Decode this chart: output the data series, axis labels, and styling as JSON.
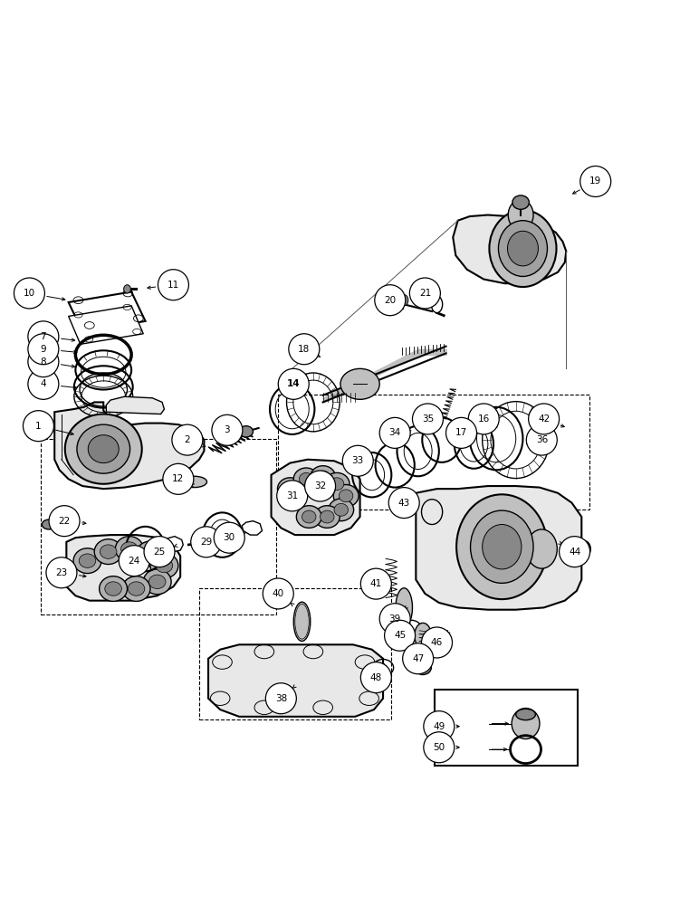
{
  "fig_width": 7.72,
  "fig_height": 10.0,
  "bg": "#ffffff",
  "label_positions": {
    "1": [
      0.055,
      0.538,
      0.11,
      0.525
    ],
    "2": [
      0.268,
      0.518,
      0.295,
      0.508
    ],
    "3": [
      0.325,
      0.532,
      0.348,
      0.522
    ],
    "4": [
      0.062,
      0.598,
      0.115,
      0.592
    ],
    "7": [
      0.062,
      0.666,
      0.112,
      0.66
    ],
    "8": [
      0.062,
      0.63,
      0.112,
      0.622
    ],
    "9": [
      0.062,
      0.648,
      0.115,
      0.643
    ],
    "10": [
      0.042,
      0.728,
      0.098,
      0.718
    ],
    "11": [
      0.248,
      0.74,
      0.206,
      0.735
    ],
    "12": [
      0.255,
      0.462,
      0.272,
      0.455
    ],
    "14": [
      0.42,
      0.598,
      0.438,
      0.582
    ],
    "16": [
      0.692,
      0.548,
      0.712,
      0.535
    ],
    "17": [
      0.66,
      0.528,
      0.672,
      0.518
    ],
    "18": [
      0.435,
      0.648,
      0.462,
      0.635
    ],
    "19": [
      0.852,
      0.888,
      0.815,
      0.868
    ],
    "20": [
      0.558,
      0.718,
      0.578,
      0.705
    ],
    "21": [
      0.608,
      0.728,
      0.618,
      0.715
    ],
    "22": [
      0.092,
      0.402,
      0.128,
      0.398
    ],
    "23": [
      0.088,
      0.328,
      0.128,
      0.322
    ],
    "24": [
      0.192,
      0.345,
      0.215,
      0.352
    ],
    "25": [
      0.228,
      0.358,
      0.248,
      0.365
    ],
    "29": [
      0.295,
      0.372,
      0.318,
      0.378
    ],
    "30": [
      0.328,
      0.378,
      0.352,
      0.385
    ],
    "31": [
      0.418,
      0.438,
      0.438,
      0.448
    ],
    "32": [
      0.458,
      0.452,
      0.472,
      0.462
    ],
    "33": [
      0.512,
      0.488,
      0.532,
      0.498
    ],
    "34": [
      0.565,
      0.528,
      0.582,
      0.532
    ],
    "35": [
      0.612,
      0.548,
      0.628,
      0.545
    ],
    "36": [
      0.775,
      0.518,
      0.752,
      0.512
    ],
    "38": [
      0.402,
      0.148,
      0.418,
      0.162
    ],
    "39": [
      0.565,
      0.262,
      0.578,
      0.275
    ],
    "40": [
      0.398,
      0.298,
      0.415,
      0.285
    ],
    "41": [
      0.538,
      0.312,
      0.558,
      0.322
    ],
    "42": [
      0.778,
      0.548,
      0.812,
      0.535
    ],
    "43": [
      0.578,
      0.428,
      0.598,
      0.418
    ],
    "44": [
      0.822,
      0.358,
      0.805,
      0.368
    ],
    "45": [
      0.572,
      0.238,
      0.582,
      0.252
    ],
    "46": [
      0.625,
      0.228,
      0.638,
      0.24
    ],
    "47": [
      0.598,
      0.205,
      0.612,
      0.215
    ],
    "48": [
      0.538,
      0.178,
      0.548,
      0.192
    ],
    "49": [
      0.628,
      0.108,
      0.662,
      0.108
    ],
    "50": [
      0.628,
      0.078,
      0.662,
      0.078
    ]
  }
}
